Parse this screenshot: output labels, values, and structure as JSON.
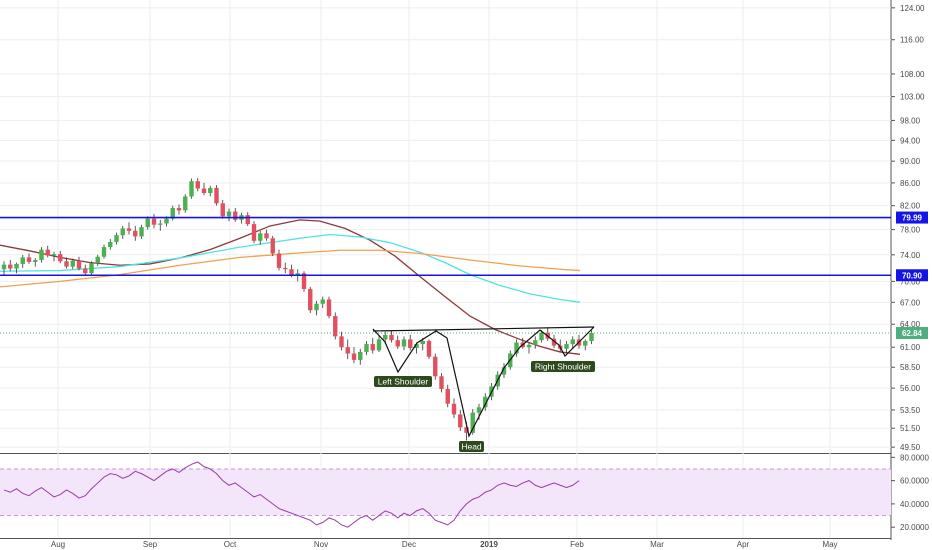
{
  "chart_data": {
    "type": "candlestick",
    "price_axis": {
      "ticks": [
        "124.00",
        "116.00",
        "108.00",
        "103.00",
        "98.00",
        "94.00",
        "90.00",
        "86.00",
        "82.00",
        "78.00",
        "74.00",
        "70.00",
        "67.00",
        "64.00",
        "61.00",
        "58.50",
        "56.00",
        "53.50",
        "51.50",
        "49.50"
      ],
      "ylim": [
        49,
        125
      ],
      "scale": "log"
    },
    "rsi_axis": {
      "ticks": [
        "80.0000",
        "60.0000",
        "40.0000",
        "20.0000"
      ],
      "ylim": [
        15,
        82
      ],
      "band": [
        30,
        70
      ]
    },
    "time_axis": {
      "labels": [
        "Aug",
        "Sep",
        "Oct",
        "Nov",
        "Dec",
        "2019",
        "Feb",
        "Mar",
        "Apr",
        "May"
      ],
      "bold": [
        "2019"
      ]
    },
    "horizontal_levels": [
      {
        "value": 79.99,
        "label": "79.99",
        "color": "#1414e6"
      },
      {
        "value": 70.9,
        "label": "70.90",
        "color": "#1414e6"
      }
    ],
    "last_price": {
      "value": 62.84,
      "label": "62.84",
      "color": "#4caf7d"
    },
    "moving_averages": [
      {
        "color": "#8b3a3a",
        "points": [
          [
            0,
            75.5
          ],
          [
            30,
            74.6
          ],
          [
            60,
            73.6
          ],
          [
            90,
            72.8
          ],
          [
            120,
            72.4
          ],
          [
            150,
            72.6
          ],
          [
            180,
            73.5
          ],
          [
            210,
            74.8
          ],
          [
            240,
            76.6
          ],
          [
            270,
            78.6
          ],
          [
            300,
            79.6
          ],
          [
            320,
            79.4
          ],
          [
            345,
            78.2
          ],
          [
            370,
            76.3
          ],
          [
            395,
            73.8
          ],
          [
            420,
            70.7
          ],
          [
            445,
            67.8
          ],
          [
            470,
            65.1
          ],
          [
            495,
            63.3
          ],
          [
            520,
            62.0
          ],
          [
            540,
            61.1
          ],
          [
            560,
            60.4
          ],
          [
            580,
            60.1
          ]
        ]
      },
      {
        "color": "#4fe3e3",
        "points": [
          [
            0,
            71.5
          ],
          [
            60,
            71.6
          ],
          [
            120,
            72.2
          ],
          [
            180,
            73.5
          ],
          [
            240,
            75.2
          ],
          [
            300,
            76.6
          ],
          [
            330,
            77.2
          ],
          [
            360,
            76.8
          ],
          [
            390,
            75.9
          ],
          [
            420,
            74.4
          ],
          [
            445,
            72.8
          ],
          [
            470,
            71.0
          ],
          [
            500,
            69.4
          ],
          [
            530,
            68.2
          ],
          [
            560,
            67.4
          ],
          [
            580,
            67.0
          ]
        ]
      },
      {
        "color": "#f0a050",
        "points": [
          [
            0,
            69.2
          ],
          [
            60,
            70.0
          ],
          [
            120,
            71.0
          ],
          [
            180,
            72.4
          ],
          [
            240,
            73.6
          ],
          [
            300,
            74.3
          ],
          [
            340,
            74.7
          ],
          [
            380,
            74.7
          ],
          [
            420,
            74.2
          ],
          [
            470,
            73.2
          ],
          [
            520,
            72.3
          ],
          [
            560,
            71.8
          ],
          [
            580,
            71.6
          ]
        ]
      }
    ],
    "candles": [
      [
        71.8,
        73.0,
        71.0,
        72.5
      ],
      [
        72.5,
        73.2,
        71.5,
        71.9
      ],
      [
        71.9,
        72.8,
        71.2,
        72.6
      ],
      [
        72.6,
        74.0,
        72.0,
        73.6
      ],
      [
        73.6,
        74.2,
        72.6,
        72.9
      ],
      [
        72.9,
        73.5,
        72.2,
        73.2
      ],
      [
        73.2,
        75.2,
        72.8,
        74.8
      ],
      [
        74.8,
        75.4,
        73.6,
        73.9
      ],
      [
        73.9,
        74.5,
        73.0,
        74.1
      ],
      [
        74.1,
        74.6,
        72.7,
        73.0
      ],
      [
        73.0,
        73.6,
        71.9,
        72.2
      ],
      [
        72.2,
        73.4,
        71.8,
        73.1
      ],
      [
        73.1,
        73.7,
        71.6,
        71.9
      ],
      [
        71.9,
        72.5,
        70.8,
        71.2
      ],
      [
        71.2,
        73.0,
        70.9,
        72.7
      ],
      [
        72.7,
        74.0,
        72.3,
        73.7
      ],
      [
        73.7,
        75.6,
        73.4,
        75.2
      ],
      [
        75.2,
        76.5,
        74.8,
        76.0
      ],
      [
        76.0,
        77.5,
        75.6,
        77.1
      ],
      [
        77.1,
        78.6,
        76.5,
        78.2
      ],
      [
        78.2,
        79.2,
        77.2,
        77.8
      ],
      [
        77.8,
        78.6,
        76.2,
        76.9
      ],
      [
        76.9,
        78.8,
        76.5,
        78.4
      ],
      [
        78.4,
        80.2,
        78.0,
        79.8
      ],
      [
        79.8,
        80.6,
        78.2,
        78.8
      ],
      [
        78.8,
        79.6,
        77.8,
        79.0
      ],
      [
        79.0,
        80.2,
        78.5,
        79.8
      ],
      [
        79.8,
        82.0,
        79.5,
        81.6
      ],
      [
        81.6,
        82.2,
        80.5,
        81.2
      ],
      [
        81.2,
        84.0,
        80.8,
        83.6
      ],
      [
        83.6,
        86.8,
        83.2,
        86.3
      ],
      [
        86.3,
        86.9,
        84.5,
        85.0
      ],
      [
        85.0,
        86.0,
        83.8,
        84.2
      ],
      [
        84.2,
        85.5,
        83.6,
        85.1
      ],
      [
        85.1,
        85.6,
        82.0,
        82.4
      ],
      [
        82.4,
        83.0,
        79.8,
        80.2
      ],
      [
        80.2,
        81.5,
        79.4,
        81.0
      ],
      [
        81.0,
        81.6,
        79.3,
        79.6
      ],
      [
        79.6,
        80.8,
        79.0,
        80.4
      ],
      [
        80.4,
        80.9,
        78.6,
        78.9
      ],
      [
        78.9,
        79.4,
        75.8,
        76.2
      ],
      [
        76.2,
        77.8,
        75.6,
        77.4
      ],
      [
        77.4,
        78.0,
        76.2,
        76.6
      ],
      [
        76.6,
        77.0,
        73.8,
        74.2
      ],
      [
        74.2,
        74.8,
        71.6,
        72.0
      ],
      [
        72.0,
        72.8,
        71.2,
        71.8
      ],
      [
        71.8,
        72.5,
        70.6,
        71.0
      ],
      [
        71.0,
        71.8,
        70.0,
        71.2
      ],
      [
        71.2,
        71.5,
        68.5,
        68.9
      ],
      [
        68.9,
        69.2,
        65.5,
        65.9
      ],
      [
        65.9,
        67.2,
        65.2,
        66.8
      ],
      [
        66.8,
        67.8,
        66.2,
        67.4
      ],
      [
        67.4,
        67.8,
        64.8,
        65.1
      ],
      [
        65.1,
        65.6,
        62.0,
        62.4
      ],
      [
        62.4,
        63.0,
        60.6,
        61.0
      ],
      [
        61.0,
        62.0,
        59.5,
        60.2
      ],
      [
        60.2,
        61.0,
        59.0,
        59.4
      ],
      [
        59.4,
        60.8,
        58.8,
        60.4
      ],
      [
        60.4,
        61.8,
        60.0,
        61.4
      ],
      [
        61.4,
        62.2,
        60.2,
        60.6
      ],
      [
        60.6,
        62.6,
        60.4,
        62.0
      ],
      [
        62.0,
        63.0,
        61.4,
        62.6
      ],
      [
        62.6,
        63.2,
        61.6,
        61.9
      ],
      [
        61.9,
        62.5,
        60.8,
        61.1
      ],
      [
        61.1,
        62.4,
        60.6,
        62.0
      ],
      [
        62.0,
        62.6,
        60.6,
        60.9
      ],
      [
        60.9,
        61.6,
        60.2,
        61.4
      ],
      [
        61.4,
        62.2,
        60.6,
        61.8
      ],
      [
        61.8,
        62.0,
        59.5,
        59.8
      ],
      [
        59.8,
        60.2,
        57.0,
        57.4
      ],
      [
        57.4,
        57.8,
        55.5,
        55.9
      ],
      [
        55.9,
        56.4,
        53.8,
        54.2
      ],
      [
        54.2,
        54.8,
        52.6,
        53.0
      ],
      [
        53.0,
        53.5,
        51.2,
        51.6
      ],
      [
        51.6,
        52.2,
        50.2,
        51.0
      ],
      [
        51.0,
        53.6,
        50.8,
        53.2
      ],
      [
        53.2,
        54.2,
        52.4,
        53.8
      ],
      [
        53.8,
        55.4,
        53.4,
        55.0
      ],
      [
        55.0,
        56.6,
        54.6,
        56.2
      ],
      [
        56.2,
        58.0,
        55.8,
        57.6
      ],
      [
        57.6,
        59.0,
        57.2,
        58.5
      ],
      [
        58.5,
        60.6,
        58.2,
        60.2
      ],
      [
        60.2,
        62.0,
        59.8,
        61.6
      ],
      [
        61.6,
        62.2,
        60.8,
        61.0
      ],
      [
        61.0,
        61.6,
        60.2,
        61.3
      ],
      [
        61.3,
        62.4,
        60.8,
        61.9
      ],
      [
        61.9,
        63.2,
        61.6,
        62.9
      ],
      [
        62.9,
        63.6,
        61.8,
        62.1
      ],
      [
        62.1,
        62.6,
        60.9,
        61.2
      ],
      [
        61.2,
        62.0,
        60.4,
        60.8
      ],
      [
        60.8,
        61.8,
        60.2,
        61.4
      ],
      [
        61.4,
        62.4,
        60.8,
        62.0
      ],
      [
        62.0,
        62.6,
        60.8,
        61.2
      ],
      [
        61.2,
        62.0,
        60.6,
        61.8
      ],
      [
        61.8,
        63.2,
        61.4,
        62.84
      ]
    ],
    "rsi": [
      52,
      50,
      53,
      49,
      47,
      51,
      54,
      50,
      46,
      48,
      52,
      49,
      45,
      47,
      53,
      58,
      63,
      66,
      65,
      62,
      64,
      68,
      66,
      63,
      60,
      64,
      68,
      70,
      67,
      71,
      74,
      76,
      72,
      70,
      66,
      60,
      56,
      58,
      54,
      50,
      46,
      48,
      44,
      40,
      36,
      34,
      32,
      30,
      28,
      26,
      22,
      24,
      28,
      26,
      22,
      20,
      24,
      28,
      30,
      26,
      30,
      34,
      32,
      28,
      32,
      30,
      34,
      36,
      32,
      26,
      24,
      22,
      26,
      34,
      40,
      44,
      46,
      50,
      52,
      56,
      58,
      56,
      55,
      58,
      60,
      56,
      54,
      56,
      58,
      56,
      54,
      56,
      60
    ]
  },
  "annotations": {
    "left_shoulder": "Left Shoulder",
    "head": "Head",
    "right_shoulder": "Right Shoulder"
  }
}
